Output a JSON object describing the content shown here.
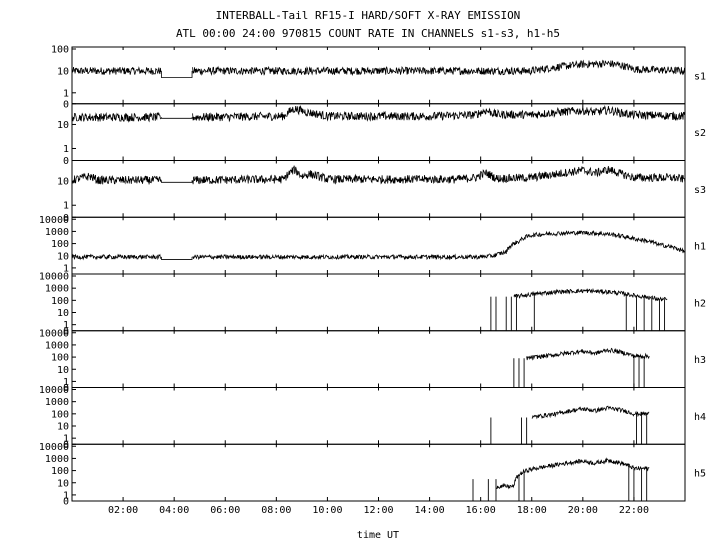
{
  "title": "INTERBALL-Tail RF15-I HARD/SOFT X-RAY EMISSION",
  "subtitle": "ATL 00:00 24:00 970815  COUNT RATE IN CHANNELS s1-s3, h1-h5",
  "xlabel": "time UT",
  "chart_data": {
    "type": "line",
    "title": "INTERBALL-Tail RF15-I HARD/SOFT X-RAY EMISSION",
    "subtitle": "ATL 00:00 24:00 970815  COUNT RATE IN CHANNELS s1-s3, h1-h5",
    "xlabel": "time UT",
    "x_range_hours": [
      0,
      24
    ],
    "x_ticks": [
      "02:00",
      "04:00",
      "06:00",
      "08:00",
      "10:00",
      "12:00",
      "14:00",
      "16:00",
      "18:00",
      "20:00",
      "22:00"
    ],
    "x_tick_hours": [
      2,
      4,
      6,
      8,
      10,
      12,
      14,
      16,
      18,
      20,
      22
    ],
    "yscale": "log",
    "grid": false,
    "panels": [
      {
        "name": "s1",
        "y_ticks": [
          "100",
          "10",
          "1",
          "0"
        ],
        "y_tick_values": [
          100,
          10,
          1,
          0
        ],
        "ymax": 100,
        "data_gap_hours": [
          3.5,
          4.7
        ],
        "gap_level": 5,
        "points": [
          [
            0,
            10
          ],
          [
            2,
            10
          ],
          [
            3.5,
            10
          ],
          [
            4.7,
            10
          ],
          [
            6,
            10
          ],
          [
            8,
            10
          ],
          [
            9,
            10
          ],
          [
            12,
            10
          ],
          [
            16,
            10
          ],
          [
            18,
            10
          ],
          [
            19,
            15
          ],
          [
            20,
            20
          ],
          [
            21,
            22
          ],
          [
            21.5,
            18
          ],
          [
            22,
            12
          ],
          [
            24,
            10
          ]
        ]
      },
      {
        "name": "s2",
        "y_ticks": [
          "10",
          "1",
          "0"
        ],
        "y_tick_values": [
          10,
          1,
          0
        ],
        "ymax": 60,
        "data_gap_hours": [
          3.5,
          4.7
        ],
        "gap_level": 18,
        "points": [
          [
            0,
            20
          ],
          [
            3.5,
            20
          ],
          [
            4.7,
            20
          ],
          [
            8.3,
            22
          ],
          [
            8.7,
            45
          ],
          [
            9.2,
            32
          ],
          [
            10,
            22
          ],
          [
            14,
            22
          ],
          [
            15.8,
            25
          ],
          [
            16.2,
            38
          ],
          [
            16.6,
            26
          ],
          [
            18,
            25
          ],
          [
            19,
            32
          ],
          [
            20,
            38
          ],
          [
            20.5,
            32
          ],
          [
            21,
            40
          ],
          [
            21.5,
            30
          ],
          [
            22,
            25
          ],
          [
            24,
            22
          ]
        ]
      },
      {
        "name": "s3",
        "y_ticks": [
          "10",
          "1",
          "0"
        ],
        "y_tick_values": [
          10,
          1,
          0
        ],
        "ymax": 60,
        "data_gap_hours": [
          3.5,
          4.7
        ],
        "gap_level": 9,
        "points": [
          [
            0,
            11
          ],
          [
            0.7,
            16
          ],
          [
            1,
            11
          ],
          [
            3.5,
            11
          ],
          [
            4.7,
            11
          ],
          [
            8.3,
            12
          ],
          [
            8.7,
            30
          ],
          [
            9,
            16
          ],
          [
            9.3,
            20
          ],
          [
            10,
            12
          ],
          [
            15,
            12
          ],
          [
            15.8,
            14
          ],
          [
            16.2,
            22
          ],
          [
            16.6,
            13
          ],
          [
            18,
            14
          ],
          [
            19,
            20
          ],
          [
            20,
            28
          ],
          [
            20.5,
            22
          ],
          [
            21,
            30
          ],
          [
            21.5,
            20
          ],
          [
            22,
            14
          ],
          [
            23.5,
            14
          ],
          [
            24,
            12
          ]
        ]
      },
      {
        "name": "h1",
        "y_ticks": [
          "10000",
          "1000",
          "100",
          "10",
          "1"
        ],
        "y_tick_values": [
          10000,
          1000,
          100,
          10,
          1
        ],
        "ymax": 10000,
        "data_gap_hours": [
          3.5,
          4.7
        ],
        "gap_level": 5,
        "points": [
          [
            0,
            8
          ],
          [
            3.5,
            8
          ],
          [
            4.7,
            8
          ],
          [
            8,
            8
          ],
          [
            12,
            8
          ],
          [
            15,
            8
          ],
          [
            16,
            8
          ],
          [
            16.5,
            10
          ],
          [
            17,
            20
          ],
          [
            17.5,
            150
          ],
          [
            18,
            500
          ],
          [
            19,
            700
          ],
          [
            20,
            800
          ],
          [
            21,
            600
          ],
          [
            22,
            250
          ],
          [
            23,
            80
          ],
          [
            24,
            20
          ]
        ]
      },
      {
        "name": "h2",
        "y_ticks": [
          "10000",
          "1000",
          "100",
          "10",
          "1",
          "0"
        ],
        "y_tick_values": [
          10000,
          1000,
          100,
          10,
          1,
          0
        ],
        "ymax": 10000,
        "onset_hours": 16.4,
        "end_hours": 23.3,
        "spikes_hours": [
          16.4,
          16.6,
          17.0,
          17.2,
          17.4,
          18.1,
          21.7,
          22.1,
          22.4,
          22.7,
          23.0,
          23.2
        ],
        "points": [
          [
            17.3,
            200
          ],
          [
            18,
            300
          ],
          [
            19,
            500
          ],
          [
            20,
            600
          ],
          [
            21,
            500
          ],
          [
            22,
            250
          ],
          [
            23,
            120
          ]
        ]
      },
      {
        "name": "h3",
        "y_ticks": [
          "10000",
          "1000",
          "100",
          "10",
          "1",
          "0"
        ],
        "y_tick_values": [
          10000,
          1000,
          100,
          10,
          1,
          0
        ],
        "ymax": 10000,
        "onset_hours": 17.3,
        "end_hours": 22.6,
        "spikes_hours": [
          17.3,
          17.5,
          17.7,
          22.0,
          22.2,
          22.4
        ],
        "points": [
          [
            17.8,
            80
          ],
          [
            18.5,
            120
          ],
          [
            19,
            160
          ],
          [
            20,
            300
          ],
          [
            20.5,
            200
          ],
          [
            21,
            380
          ],
          [
            21.5,
            250
          ],
          [
            22,
            120
          ]
        ]
      },
      {
        "name": "h4",
        "y_ticks": [
          "10000",
          "1000",
          "100",
          "10",
          "1",
          "0"
        ],
        "y_tick_values": [
          10000,
          1000,
          100,
          10,
          1,
          0
        ],
        "ymax": 10000,
        "onset_hours": 16.4,
        "end_hours": 22.6,
        "spikes_hours": [
          16.4,
          17.6,
          17.8,
          22.1,
          22.3,
          22.5
        ],
        "points": [
          [
            18,
            50
          ],
          [
            19,
            100
          ],
          [
            20,
            250
          ],
          [
            20.5,
            180
          ],
          [
            21,
            300
          ],
          [
            21.5,
            200
          ],
          [
            22,
            100
          ]
        ]
      },
      {
        "name": "h5",
        "y_ticks": [
          "10000",
          "1000",
          "100",
          "10",
          "1",
          "0"
        ],
        "y_tick_values": [
          10000,
          1000,
          100,
          10,
          1,
          0
        ],
        "ymax": 10000,
        "onset_hours": 15.7,
        "end_hours": 22.6,
        "spikes_hours": [
          15.7,
          16.3,
          16.6,
          17.5,
          17.7,
          21.8,
          22.0,
          22.3,
          22.5
        ],
        "points": [
          [
            16.6,
            5
          ],
          [
            17.3,
            5
          ],
          [
            17.8,
            100
          ],
          [
            18.5,
            200
          ],
          [
            19,
            300
          ],
          [
            20,
            600
          ],
          [
            20.5,
            400
          ],
          [
            21,
            700
          ],
          [
            21.5,
            400
          ],
          [
            22,
            150
          ]
        ]
      }
    ]
  }
}
